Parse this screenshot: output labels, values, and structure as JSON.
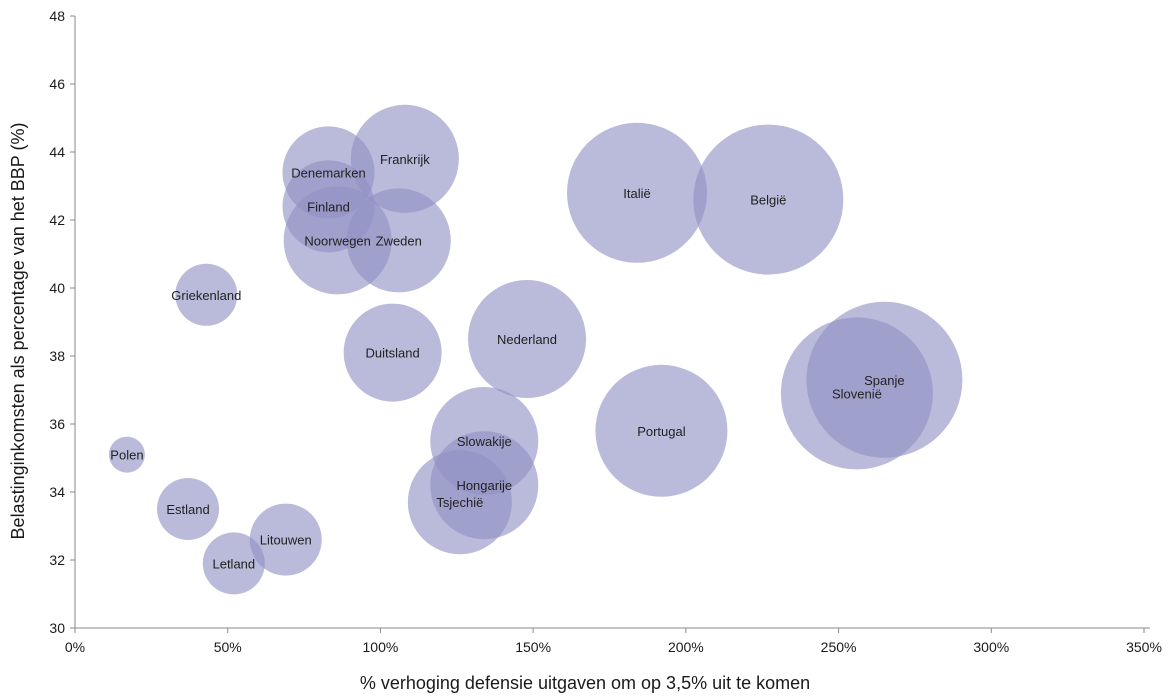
{
  "chart_data": {
    "type": "scatter",
    "title": "",
    "xlabel": "% verhoging defensie uitgaven om op 3,5% uit te komen",
    "ylabel": "Belastinginkomsten als percentage van het BBP (%)",
    "xlim": [
      0,
      3.5
    ],
    "ylim": [
      30,
      48
    ],
    "x_ticks": [
      0,
      0.5,
      1,
      1.5,
      2,
      2.5,
      3,
      3.5
    ],
    "x_tick_labels": [
      "0%",
      "50%",
      "100%",
      "150%",
      "200%",
      "250%",
      "300%",
      "350%"
    ],
    "y_ticks": [
      30,
      32,
      34,
      36,
      38,
      40,
      42,
      44,
      46,
      48
    ],
    "y_tick_labels": [
      "30",
      "32",
      "34",
      "36",
      "38",
      "40",
      "42",
      "44",
      "46",
      "48"
    ],
    "grid": false,
    "legend": "none",
    "bubble_color": "#8f8fc3",
    "series": [
      {
        "points": [
          {
            "label": "Polen",
            "x": 0.17,
            "y": 35.1,
            "size": 18
          },
          {
            "label": "Estland",
            "x": 0.37,
            "y": 33.5,
            "size": 31
          },
          {
            "label": "Griekenland",
            "x": 0.43,
            "y": 39.8,
            "size": 31
          },
          {
            "label": "Letland",
            "x": 0.52,
            "y": 31.9,
            "size": 31
          },
          {
            "label": "Litouwen",
            "x": 0.69,
            "y": 32.6,
            "size": 36
          },
          {
            "label": "Denemarken",
            "x": 0.83,
            "y": 43.4,
            "size": 46
          },
          {
            "label": "Finland",
            "x": 0.83,
            "y": 42.4,
            "size": 46
          },
          {
            "label": "Noorwegen",
            "x": 0.86,
            "y": 41.4,
            "size": 54
          },
          {
            "label": "Frankrijk",
            "x": 1.08,
            "y": 43.8,
            "size": 54
          },
          {
            "label": "Zweden",
            "x": 1.06,
            "y": 41.4,
            "size": 52
          },
          {
            "label": "Duitsland",
            "x": 1.04,
            "y": 38.1,
            "size": 49
          },
          {
            "label": "Nederland",
            "x": 1.48,
            "y": 38.5,
            "size": 59
          },
          {
            "label": "Slowakije",
            "x": 1.34,
            "y": 35.5,
            "size": 54
          },
          {
            "label": "Hongarije",
            "x": 1.34,
            "y": 34.2,
            "size": 54
          },
          {
            "label": "Tsjechië",
            "x": 1.26,
            "y": 33.7,
            "size": 52
          },
          {
            "label": "Portugal",
            "x": 1.92,
            "y": 35.8,
            "size": 66
          },
          {
            "label": "Italië",
            "x": 1.84,
            "y": 42.8,
            "size": 70
          },
          {
            "label": "België",
            "x": 2.27,
            "y": 42.6,
            "size": 75
          },
          {
            "label": "Slovenië",
            "x": 2.56,
            "y": 36.9,
            "size": 76
          },
          {
            "label": "Spanje",
            "x": 2.65,
            "y": 37.3,
            "size": 78
          }
        ]
      }
    ]
  }
}
